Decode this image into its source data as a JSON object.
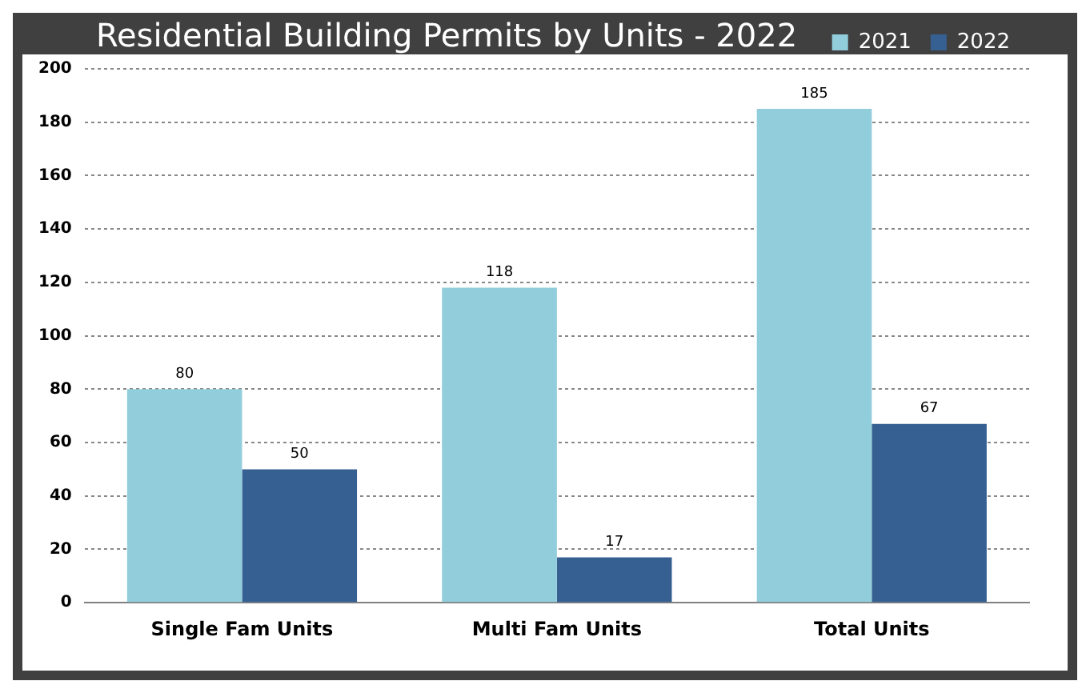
{
  "chart_data": {
    "type": "bar",
    "title": "Residential Building Permits by Units - 2022",
    "categories": [
      "Single Fam Units",
      "Multi Fam Units",
      "Total Units"
    ],
    "series": [
      {
        "name": "2021",
        "color": "#92cddc",
        "values": [
          80,
          118,
          185
        ]
      },
      {
        "name": "2022",
        "color": "#366092",
        "values": [
          50,
          17,
          67
        ]
      }
    ],
    "ylim": [
      0,
      200
    ],
    "yticks": [
      0,
      20,
      40,
      60,
      80,
      100,
      120,
      140,
      160,
      180,
      200
    ],
    "grid": "y",
    "legend": "top right",
    "data_labels": true
  }
}
